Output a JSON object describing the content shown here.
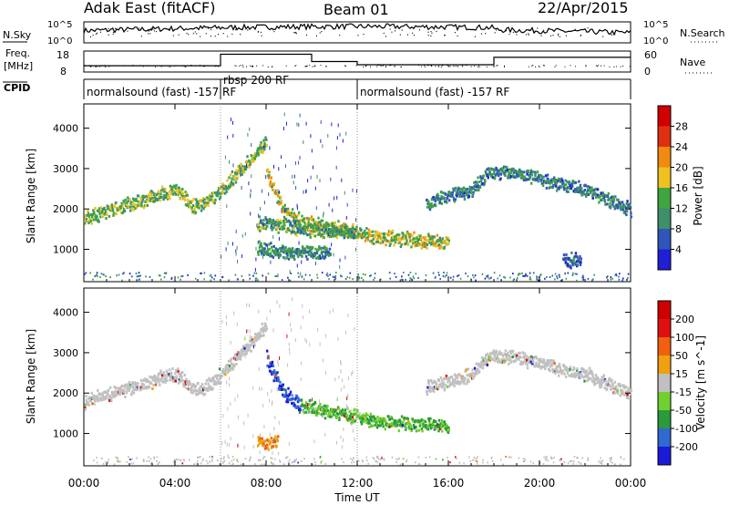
{
  "header": {
    "station": "Adak East (fitACF)",
    "beam": "Beam 01",
    "date": "22/Apr/2015"
  },
  "chart_data": [
    {
      "type": "line",
      "panel": "noise",
      "left_label": "N.Sky",
      "right_label": "N.Search",
      "left_ticks": [
        "10^5",
        "10^0"
      ],
      "right_ticks": [
        "10^5",
        "10^0"
      ],
      "scale": "log"
    },
    {
      "type": "line",
      "panel": "frequency",
      "left_label_top": "Freq.",
      "left_label_bottom": "[MHz]",
      "right_label": "Nave",
      "left_ticks": [
        "18",
        "8"
      ],
      "right_ticks": [
        "60",
        "0"
      ],
      "freq_steps": [
        {
          "x": [
            0.0,
            6.0
          ],
          "y": 11.0
        },
        {
          "x": [
            6.0,
            10.0
          ],
          "y": 16.5
        },
        {
          "x": [
            10.0,
            12.0
          ],
          "y": 13.0
        },
        {
          "x": [
            12.0,
            18.0
          ],
          "y": 11.5
        },
        {
          "x": [
            18.0,
            24.0
          ],
          "y": 15.0
        }
      ]
    },
    {
      "type": "table",
      "panel": "cpid",
      "label": "CPID",
      "segments": [
        {
          "start": 0.0,
          "end": 6.0,
          "text": "normalsound (fast) -157 RF"
        },
        {
          "start": 6.0,
          "end": 12.0,
          "text": "rbsp 200 RF"
        },
        {
          "start": 12.0,
          "end": 24.0,
          "text": "normalsound (fast) -157 RF"
        }
      ]
    },
    {
      "type": "heatmap",
      "panel": "power",
      "ylabel": "Slant Range [km]",
      "ylim": [
        200,
        4600
      ],
      "yticks": [
        "1000",
        "2000",
        "3000",
        "4000"
      ],
      "colorbar_label": "Power [dB]",
      "colorbar_ticks": [
        "4",
        "8",
        "12",
        "16",
        "20",
        "24",
        "28"
      ],
      "colorbar_range": [
        0,
        32
      ],
      "colors": [
        "#1f1fd6",
        "#2f56b8",
        "#3f8f6a",
        "#3fa53f",
        "#f0c020",
        "#f08a10",
        "#e03010",
        "#d00000"
      ],
      "features": [
        {
          "t": [
            0.0,
            4.0,
            4.8,
            5.6,
            7.2,
            8.0
          ],
          "r": [
            1800,
            2500,
            2100,
            2250,
            3200,
            3700
          ],
          "level": 12
        },
        {
          "t": [
            8.0,
            8.7,
            9.5,
            11.0,
            12.8,
            14.5,
            16.0
          ],
          "r": [
            2900,
            2050,
            1700,
            1550,
            1350,
            1250,
            1200
          ],
          "level": 14
        },
        {
          "t": [
            7.6,
            8.5,
            10.0,
            12.0
          ],
          "r": [
            1650,
            1650,
            1500,
            1450
          ],
          "level": 10
        },
        {
          "t": [
            7.6,
            9.0,
            10.8
          ],
          "r": [
            1050,
            950,
            950
          ],
          "level": 8
        },
        {
          "t": [
            15.0,
            17.0,
            17.8,
            19.0,
            22.0,
            24.0
          ],
          "r": [
            2150,
            2500,
            2950,
            2900,
            2500,
            2000
          ],
          "level": 7
        },
        {
          "t": [
            21.0,
            21.8
          ],
          "r": [
            750,
            750
          ],
          "level": 6
        }
      ]
    },
    {
      "type": "heatmap",
      "panel": "velocity",
      "ylabel": "Slant Range [km]",
      "ylim": [
        200,
        4600
      ],
      "yticks": [
        "1000",
        "2000",
        "3000",
        "4000"
      ],
      "colorbar_label": "Velocity [m s^-1]",
      "colorbar_ticks": [
        "200",
        "100",
        "50",
        "15",
        "-15",
        "-50",
        "-100",
        "-200"
      ],
      "colors": [
        "#1a1ad8",
        "#2e6ad0",
        "#2a9a3a",
        "#70d030",
        "#c0c0c0",
        "#f0a010",
        "#f06010",
        "#e01010",
        "#d00000"
      ],
      "features": [
        {
          "t": [
            0.0,
            4.0,
            4.8,
            5.6,
            7.2,
            8.0
          ],
          "r": [
            1800,
            2500,
            2100,
            2250,
            3200,
            3700
          ],
          "v": "grey"
        },
        {
          "t": [
            8.0,
            8.7,
            9.5
          ],
          "r": [
            2900,
            2050,
            1700
          ],
          "v": "blue"
        },
        {
          "t": [
            9.5,
            11.0,
            12.8,
            14.5,
            16.0
          ],
          "r": [
            1700,
            1550,
            1350,
            1250,
            1200
          ],
          "v": "green"
        },
        {
          "t": [
            7.6,
            8.5
          ],
          "r": [
            800,
            800
          ],
          "v": "orange"
        },
        {
          "t": [
            15.0,
            17.0,
            17.8,
            19.0,
            22.0,
            24.0
          ],
          "r": [
            2150,
            2500,
            2950,
            2900,
            2500,
            2000
          ],
          "v": "grey"
        }
      ]
    }
  ],
  "xaxis": {
    "label": "Time UT",
    "ticks": [
      "00:00",
      "04:00",
      "08:00",
      "12:00",
      "16:00",
      "20:00",
      "00:00"
    ],
    "range": [
      0,
      24
    ]
  }
}
